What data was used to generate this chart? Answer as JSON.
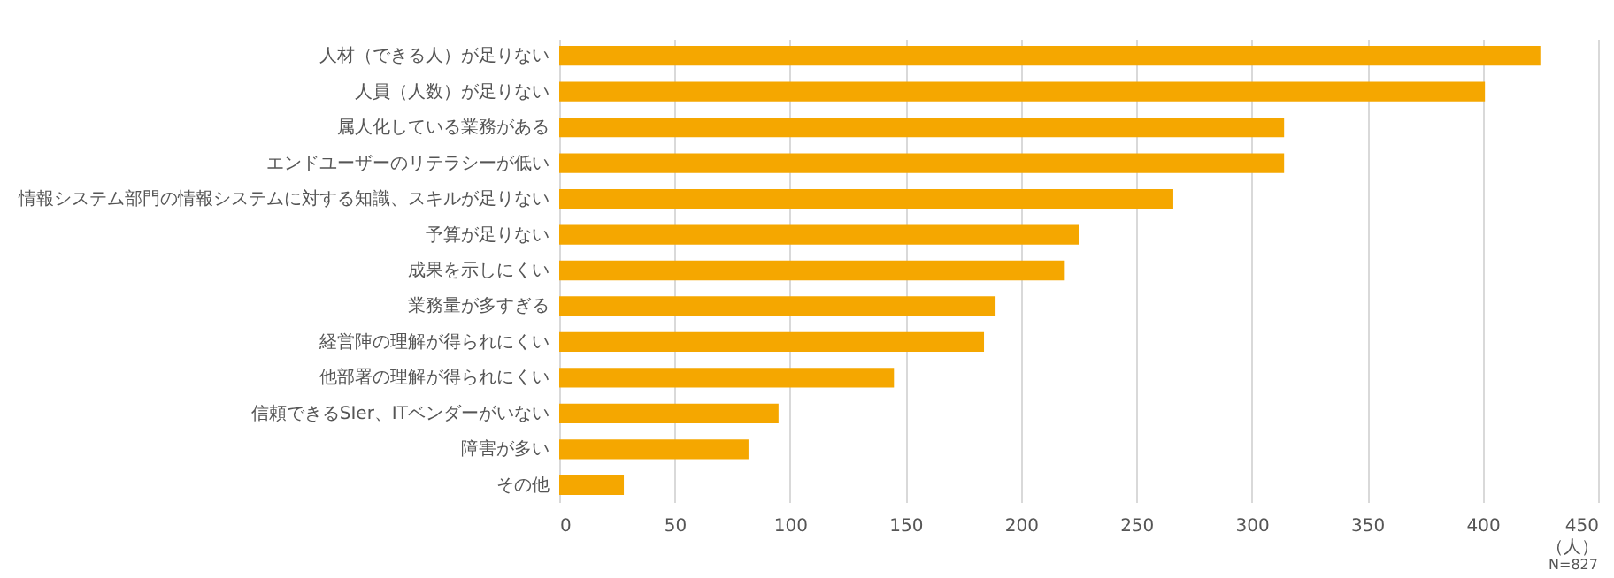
{
  "chart_data": {
    "type": "bar",
    "orientation": "horizontal",
    "categories": [
      "人材（できる人）が足りない",
      "人員（人数）が足りない",
      "属人化している業務がある",
      "エンドユーザーのリテラシーが低い",
      "情報システム部門の情報システムに対する知識、スキルが足りない",
      "予算が足りない",
      "成果を示しにくい",
      "業務量が多すぎる",
      "経営陣の理解が得られにくい",
      "他部署の理解が得られにくい",
      "信頼できるSIer、ITベンダーがいない",
      "障害が多い",
      "その他"
    ],
    "values": [
      425,
      401,
      314,
      314,
      266,
      225,
      219,
      189,
      184,
      145,
      95,
      82,
      28
    ],
    "color": "#f5a700",
    "xlabel": "（人）",
    "xlim": [
      0,
      450
    ],
    "xticks": [
      0,
      50,
      100,
      150,
      200,
      250,
      300,
      350,
      400,
      450
    ],
    "grid": "x",
    "annotations": [
      "N=827"
    ]
  }
}
